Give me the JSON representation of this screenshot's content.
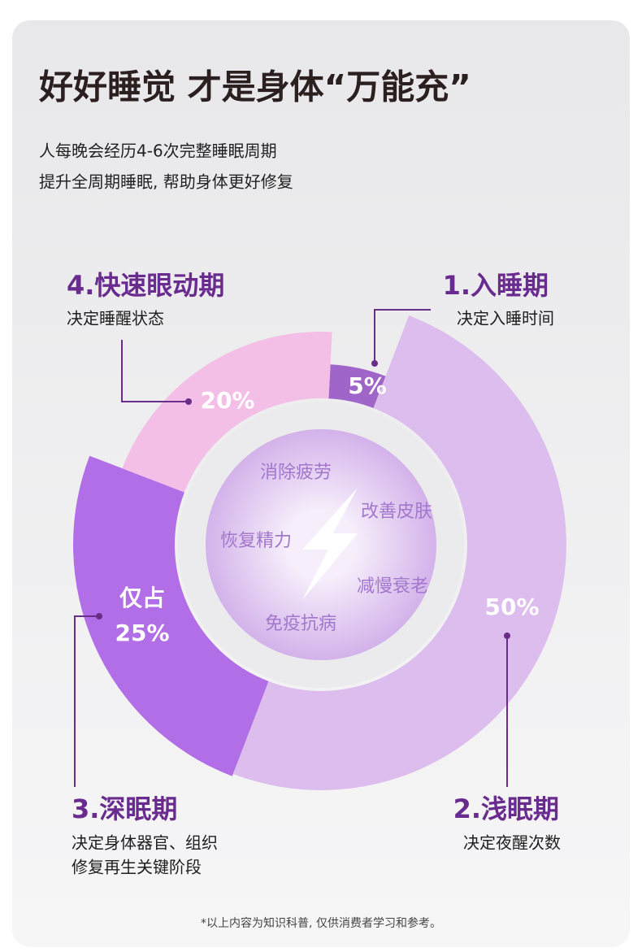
{
  "chart_data": {
    "type": "donut",
    "title": "好好睡觉 才是身体“万能充”",
    "subtitle": [
      "人每晚会经历4-6次完整睡眠周期",
      "提升全周期睡眠, 帮助身体更好修复"
    ],
    "categories": [
      "1.入睡期",
      "2.浅眠期",
      "3.深眠期",
      "4.快速眼动期"
    ],
    "descriptions": [
      [
        "决定入睡时间"
      ],
      [
        "决定夜醒次数"
      ],
      [
        "决定身体器官、组织",
        "修复再生关键阶段"
      ],
      [
        "决定睡醒状态"
      ]
    ],
    "values": [
      5,
      50,
      25,
      20
    ],
    "value_labels": [
      "5%",
      "50%",
      "25%",
      "20%"
    ],
    "callout": "仅占",
    "colors": [
      "#a065c8",
      "#dcbdee",
      "#b26ee6",
      "#f4bfe6"
    ],
    "center_labels": [
      "消除疲劳",
      "改善皮肤",
      "恢复精力",
      "减慢衰老",
      "免疫抗病"
    ],
    "footnote": "*以上内容为知识科普, 仅供消费者学习和参考。"
  }
}
